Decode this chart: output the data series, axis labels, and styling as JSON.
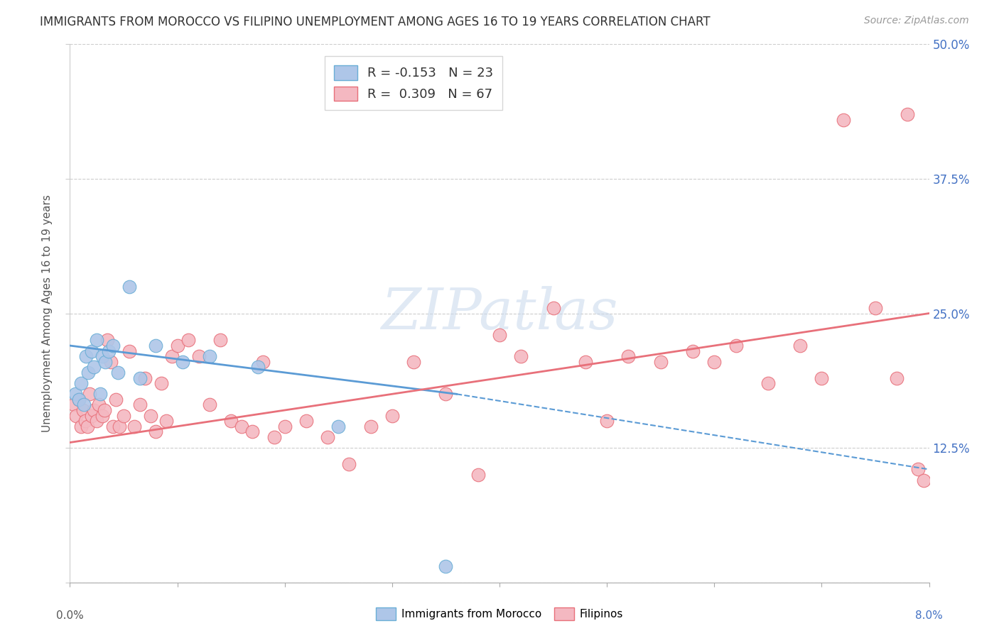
{
  "title": "IMMIGRANTS FROM MOROCCO VS FILIPINO UNEMPLOYMENT AMONG AGES 16 TO 19 YEARS CORRELATION CHART",
  "source": "Source: ZipAtlas.com",
  "ylabel": "Unemployment Among Ages 16 to 19 years",
  "xlim": [
    0.0,
    8.0
  ],
  "ylim": [
    0.0,
    50.0
  ],
  "morocco_color": "#aec6e8",
  "morocco_edge": "#6aaed6",
  "filipino_color": "#f4b8c1",
  "filipino_edge": "#e8707a",
  "trend_morocco_color": "#5b9bd5",
  "trend_filipino_color": "#e8707a",
  "legend_R_morocco": "R = -0.153",
  "legend_N_morocco": "N = 23",
  "legend_R_filipino": "R =  0.309",
  "legend_N_filipino": "N = 67",
  "morocco_x": [
    0.05,
    0.08,
    0.1,
    0.13,
    0.15,
    0.17,
    0.2,
    0.22,
    0.25,
    0.28,
    0.3,
    0.33,
    0.36,
    0.4,
    0.45,
    0.55,
    0.65,
    0.8,
    1.05,
    1.3,
    1.75,
    2.5,
    3.5
  ],
  "morocco_y": [
    17.5,
    17.0,
    18.5,
    16.5,
    21.0,
    19.5,
    21.5,
    20.0,
    22.5,
    17.5,
    21.0,
    20.5,
    21.5,
    22.0,
    19.5,
    27.5,
    19.0,
    22.0,
    20.5,
    21.0,
    20.0,
    14.5,
    1.5
  ],
  "filipino_x": [
    0.04,
    0.06,
    0.08,
    0.1,
    0.12,
    0.14,
    0.16,
    0.18,
    0.2,
    0.22,
    0.25,
    0.27,
    0.3,
    0.32,
    0.35,
    0.38,
    0.4,
    0.43,
    0.46,
    0.5,
    0.55,
    0.6,
    0.65,
    0.7,
    0.75,
    0.8,
    0.85,
    0.9,
    0.95,
    1.0,
    1.1,
    1.2,
    1.3,
    1.4,
    1.5,
    1.6,
    1.7,
    1.8,
    1.9,
    2.0,
    2.2,
    2.4,
    2.6,
    2.8,
    3.0,
    3.2,
    3.5,
    3.8,
    4.0,
    4.2,
    4.5,
    4.8,
    5.0,
    5.2,
    5.5,
    5.8,
    6.0,
    6.2,
    6.5,
    6.8,
    7.0,
    7.2,
    7.5,
    7.7,
    7.8,
    7.9,
    7.95
  ],
  "filipino_y": [
    16.5,
    15.5,
    17.0,
    14.5,
    16.0,
    15.0,
    14.5,
    17.5,
    15.5,
    16.0,
    15.0,
    16.5,
    15.5,
    16.0,
    22.5,
    20.5,
    14.5,
    17.0,
    14.5,
    15.5,
    21.5,
    14.5,
    16.5,
    19.0,
    15.5,
    14.0,
    18.5,
    15.0,
    21.0,
    22.0,
    22.5,
    21.0,
    16.5,
    22.5,
    15.0,
    14.5,
    14.0,
    20.5,
    13.5,
    14.5,
    15.0,
    13.5,
    11.0,
    14.5,
    15.5,
    20.5,
    17.5,
    10.0,
    23.0,
    21.0,
    25.5,
    20.5,
    15.0,
    21.0,
    20.5,
    21.5,
    20.5,
    22.0,
    18.5,
    22.0,
    19.0,
    43.0,
    25.5,
    19.0,
    43.5,
    10.5,
    9.5
  ],
  "morocco_trend_x0": 0.0,
  "morocco_trend_y0": 22.0,
  "morocco_trend_x1": 3.6,
  "morocco_trend_y1": 17.5,
  "morocco_dash_x0": 3.6,
  "morocco_dash_y0": 17.5,
  "morocco_dash_x1": 8.0,
  "morocco_dash_y1": 10.5,
  "filipino_trend_x0": 0.0,
  "filipino_trend_y0": 13.0,
  "filipino_trend_x1": 8.0,
  "filipino_trend_y1": 25.0
}
